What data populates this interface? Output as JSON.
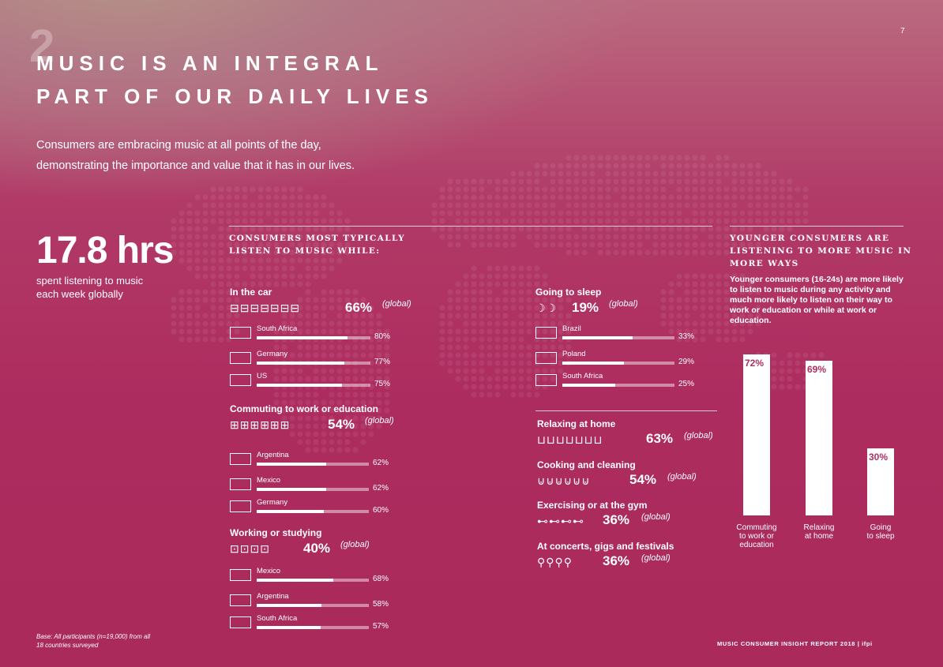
{
  "page": {
    "section_number": "2",
    "page_number": "7",
    "title_line1": "MUSIC IS AN INTEGRAL",
    "title_line2": "PART OF OUR DAILY LIVES",
    "intro_line1": "Consumers are embracing music at all points of the day,",
    "intro_line2": "demonstrating the importance and value that it has in our lives.",
    "hours_value": "17.8 hrs",
    "hours_label_line1": "spent listening to music",
    "hours_label_line2": "each week globally",
    "base_line1": "Base: All participants (n=19,000) from all",
    "base_line2": "18 countries surveyed",
    "footer": "MUSIC CONSUMER INSIGHT REPORT 2018  |  ifpi"
  },
  "activities": {
    "header_line1": "CONSUMERS MOST TYPICALLY",
    "header_line2": "LISTEN TO MUSIC WHILE:",
    "global_word": "(global)"
  },
  "chart_data": [
    {
      "type": "bar",
      "title": "In the car",
      "global": "66%",
      "categories": [
        "South Africa",
        "Germany",
        "US"
      ],
      "values": [
        80,
        77,
        75
      ],
      "value_labels": [
        "80%",
        "77%",
        "75%"
      ],
      "icon": "car-icon"
    },
    {
      "type": "bar",
      "title": "Commuting to work or education",
      "global": "54%",
      "categories": [
        "Argentina",
        "Mexico",
        "Germany"
      ],
      "values": [
        62,
        62,
        60
      ],
      "value_labels": [
        "62%",
        "62%",
        "60%"
      ],
      "icon": "bus-icon"
    },
    {
      "type": "bar",
      "title": "Working or studying",
      "global": "40%",
      "categories": [
        "Mexico",
        "Argentina",
        "South Africa"
      ],
      "values": [
        68,
        58,
        57
      ],
      "value_labels": [
        "68%",
        "58%",
        "57%"
      ],
      "icon": "briefcase-icon"
    },
    {
      "type": "bar",
      "title": "Going to sleep",
      "global": "19%",
      "categories": [
        "Brazil",
        "Poland",
        "South Africa"
      ],
      "values": [
        33,
        29,
        25
      ],
      "value_labels": [
        "33%",
        "29%",
        "25%"
      ],
      "icon": "moon-icon"
    },
    {
      "type": "bar",
      "title": "Younger consumers",
      "categories": [
        "Commuting to work or education",
        "Relaxing at home",
        "Going to sleep"
      ],
      "values": [
        72,
        69,
        30
      ],
      "value_labels": [
        "72%",
        "69%",
        "30%"
      ],
      "ylim": [
        0,
        80
      ]
    }
  ],
  "global_only": [
    {
      "title": "Relaxing at home",
      "global": "63%",
      "icon": "sofa-icon"
    },
    {
      "title": "Cooking and cleaning",
      "global": "54%",
      "icon": "pot-icon"
    },
    {
      "title": "Exercising or at the gym",
      "global": "36%",
      "icon": "dumbbell-icon"
    },
    {
      "title": "At concerts, gigs and festivals",
      "global": "36%",
      "icon": "microphone-icon"
    }
  ],
  "younger": {
    "header_line1": "YOUNGER CONSUMERS ARE",
    "header_line2": "LISTENING TO MORE MUSIC IN",
    "header_line3": "MORE WAYS",
    "body": "Younger consumers (16-24s) are more likely to listen to music during any activity and much more likely to listen on their way to work or education or while at work or education.",
    "labels": [
      [
        "Commuting",
        "to work or",
        "education"
      ],
      [
        "Relaxing",
        "at home"
      ],
      [
        "Going",
        "to sleep"
      ]
    ]
  }
}
